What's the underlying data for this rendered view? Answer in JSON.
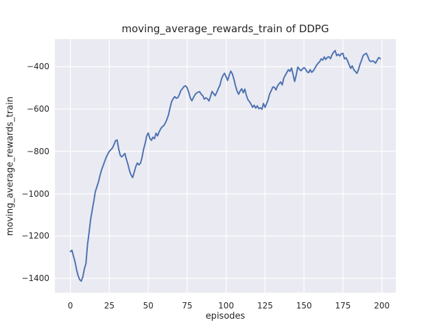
{
  "chart_data": {
    "type": "line",
    "title": "moving_average_rewards_train of DDPG",
    "xlabel": "episodes",
    "ylabel": "moving_average_rewards_train",
    "grid": true,
    "legend": "none",
    "style": "seaborn-darkgrid",
    "plot_bg_color": "#eaeaf2",
    "grid_color": "#ffffff",
    "line_color": "#4c72b0",
    "text_color": "#262626",
    "xlim": [
      -9.95,
      208.95
    ],
    "ylim": [
      -1467.5,
      -269.5
    ],
    "x_tick_values": [
      0,
      25,
      50,
      75,
      100,
      125,
      150,
      175,
      200
    ],
    "x_tick_labels": [
      "0",
      "25",
      "50",
      "75",
      "100",
      "125",
      "150",
      "175",
      "200"
    ],
    "y_tick_values": [
      -400,
      -600,
      -800,
      -1000,
      -1200,
      -1400
    ],
    "y_tick_labels": [
      "−400",
      "−600",
      "−800",
      "−1000",
      "−1200",
      "−1400"
    ],
    "series": [
      {
        "name": "moving_average_rewards_train",
        "x_start": 0,
        "x_step": 1,
        "values": [
          -1273,
          -1267,
          -1295,
          -1322,
          -1360,
          -1388,
          -1406,
          -1413,
          -1392,
          -1355,
          -1330,
          -1240,
          -1185,
          -1122,
          -1078,
          -1038,
          -992,
          -968,
          -945,
          -915,
          -888,
          -868,
          -848,
          -828,
          -813,
          -800,
          -792,
          -784,
          -768,
          -750,
          -746,
          -788,
          -818,
          -826,
          -818,
          -810,
          -838,
          -862,
          -892,
          -912,
          -924,
          -898,
          -872,
          -855,
          -864,
          -856,
          -830,
          -790,
          -763,
          -728,
          -713,
          -738,
          -748,
          -733,
          -740,
          -714,
          -727,
          -708,
          -693,
          -684,
          -678,
          -666,
          -648,
          -628,
          -595,
          -565,
          -552,
          -541,
          -549,
          -546,
          -531,
          -512,
          -503,
          -494,
          -490,
          -500,
          -521,
          -547,
          -561,
          -546,
          -533,
          -524,
          -520,
          -518,
          -530,
          -537,
          -553,
          -547,
          -552,
          -562,
          -540,
          -517,
          -528,
          -537,
          -521,
          -503,
          -488,
          -460,
          -441,
          -431,
          -448,
          -465,
          -440,
          -421,
          -434,
          -459,
          -490,
          -514,
          -530,
          -515,
          -504,
          -523,
          -506,
          -536,
          -555,
          -565,
          -577,
          -592,
          -582,
          -596,
          -585,
          -598,
          -594,
          -601,
          -574,
          -592,
          -574,
          -556,
          -528,
          -513,
          -496,
          -497,
          -510,
          -491,
          -481,
          -472,
          -486,
          -455,
          -440,
          -427,
          -414,
          -422,
          -406,
          -437,
          -470,
          -440,
          -402,
          -411,
          -419,
          -411,
          -404,
          -411,
          -424,
          -428,
          -414,
          -427,
          -419,
          -407,
          -394,
          -384,
          -377,
          -363,
          -369,
          -354,
          -366,
          -356,
          -353,
          -362,
          -344,
          -332,
          -324,
          -348,
          -341,
          -349,
          -339,
          -337,
          -363,
          -358,
          -372,
          -391,
          -408,
          -396,
          -414,
          -423,
          -431,
          -414,
          -388,
          -369,
          -347,
          -341,
          -337,
          -351,
          -371,
          -376,
          -372,
          -376,
          -383,
          -369,
          -357,
          -362
        ]
      }
    ]
  }
}
